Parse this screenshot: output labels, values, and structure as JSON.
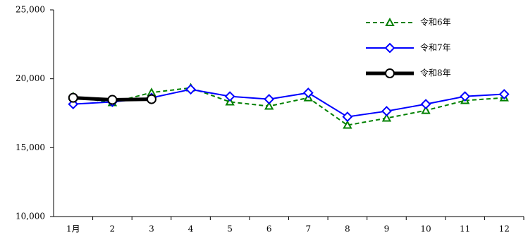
{
  "chart_data": {
    "type": "line",
    "categories": [
      "1月",
      "2",
      "3",
      "4",
      "5",
      "6",
      "7",
      "8",
      "9",
      "10",
      "11",
      "12"
    ],
    "series": [
      {
        "name": "令和6年",
        "color": "#008000",
        "marker": "triangle",
        "dash": true,
        "values": [
          18700,
          18270,
          19000,
          19340,
          18320,
          18010,
          18620,
          16630,
          17140,
          17700,
          18420,
          18620
        ]
      },
      {
        "name": "令和7年",
        "color": "#0000ff",
        "marker": "diamond",
        "dash": false,
        "values": [
          18160,
          18320,
          18620,
          19230,
          18720,
          18520,
          18980,
          17240,
          17650,
          18160,
          18720,
          18880
        ]
      },
      {
        "name": "令和8年",
        "color": "#000000",
        "marker": "circle",
        "dash": false,
        "values": [
          18620,
          18470,
          18520,
          null,
          null,
          null,
          null,
          null,
          null,
          null,
          null,
          null
        ]
      }
    ],
    "ylim": [
      10000,
      25000
    ],
    "yticks": [
      {
        "value": 10000,
        "label": "10,000"
      },
      {
        "value": 15000,
        "label": "15,000"
      },
      {
        "value": 20000,
        "label": "20,000"
      },
      {
        "value": 25000,
        "label": "25,000"
      }
    ],
    "grid": false,
    "legend": "top-right"
  }
}
